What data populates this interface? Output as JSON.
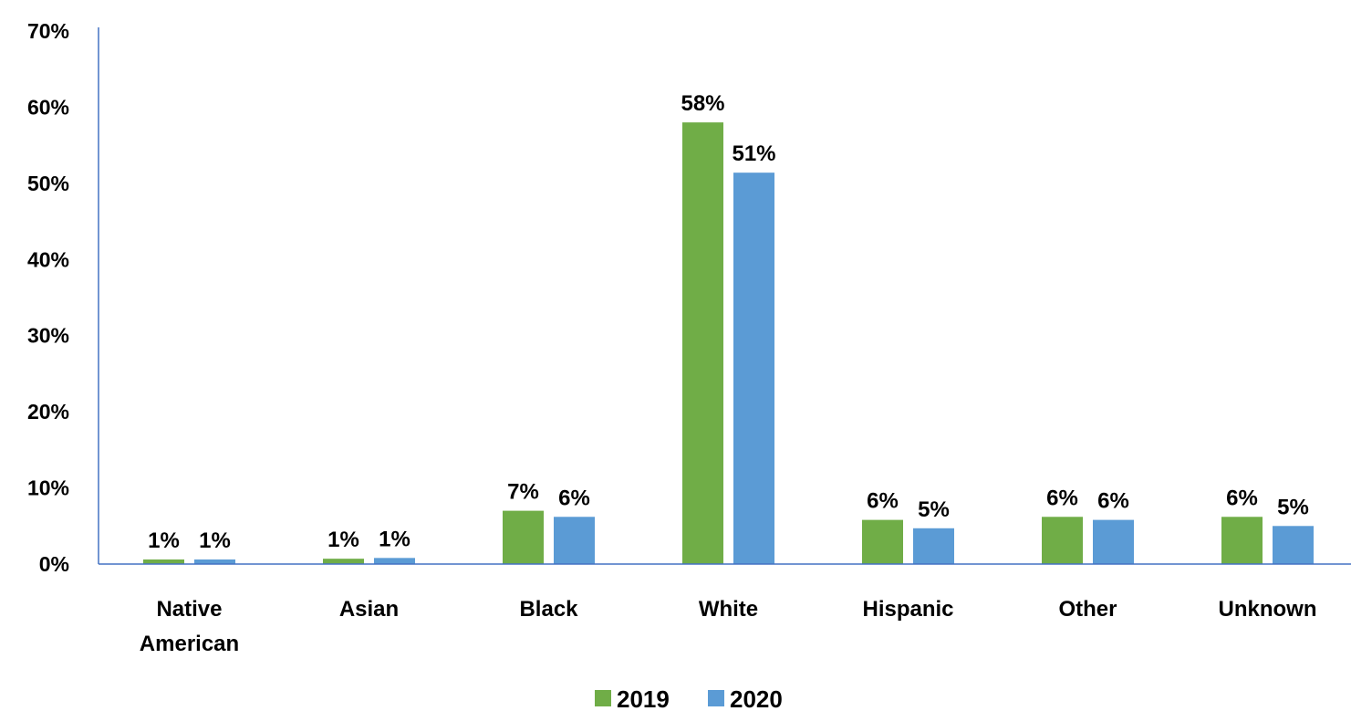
{
  "chart_data": {
    "type": "bar",
    "categories": [
      [
        "Native",
        "American"
      ],
      [
        "Asian"
      ],
      [
        "Black"
      ],
      [
        "White"
      ],
      [
        "Hispanic"
      ],
      [
        "Other"
      ],
      [
        "Unknown"
      ]
    ],
    "series": [
      {
        "name": "2019",
        "color": "#70ad47",
        "values": [
          0.6,
          0.7,
          7.0,
          58.0,
          5.8,
          6.2,
          6.2
        ],
        "labels": [
          "1%",
          "1%",
          "7%",
          "58%",
          "6%",
          "6%",
          "6%"
        ]
      },
      {
        "name": "2020",
        "color": "#5b9bd5",
        "values": [
          0.6,
          0.8,
          6.2,
          51.4,
          4.7,
          5.8,
          5.0
        ],
        "labels": [
          "1%",
          "1%",
          "6%",
          "51%",
          "5%",
          "6%",
          "5%"
        ]
      }
    ],
    "ylim": [
      0,
      70
    ],
    "yticks": [
      0,
      10,
      20,
      30,
      40,
      50,
      60,
      70
    ],
    "ytick_labels": [
      "0%",
      "10%",
      "20%",
      "30%",
      "40%",
      "50%",
      "60%",
      "70%"
    ],
    "axis_color": "#4472c4",
    "grid": false,
    "legend_position": "bottom",
    "title": "",
    "xlabel": "",
    "ylabel": ""
  }
}
